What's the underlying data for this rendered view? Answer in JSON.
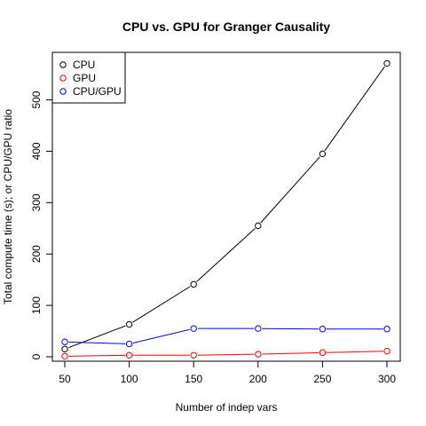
{
  "chart_data": {
    "type": "line",
    "title": "CPU vs. GPU for Granger Causality",
    "xlabel": "Number of indep vars",
    "ylabel": "Total compute time (s); or CPU/GPU ratio",
    "x": [
      50,
      100,
      150,
      200,
      250,
      300
    ],
    "xlim": [
      50,
      300
    ],
    "ylim": [
      0,
      570
    ],
    "x_ticks": [
      50,
      100,
      150,
      200,
      250,
      300
    ],
    "y_ticks": [
      0,
      100,
      200,
      300,
      400,
      500
    ],
    "grid": false,
    "legend_position": "top-left",
    "series": [
      {
        "name": "CPU",
        "color": "#000000",
        "values": [
          15,
          63,
          141,
          255,
          395,
          571
        ]
      },
      {
        "name": "GPU",
        "color": "#ff0000",
        "values": [
          1,
          3,
          3,
          5,
          8,
          11
        ]
      },
      {
        "name": "CPU/GPU",
        "color": "#0000ff",
        "values": [
          29,
          25,
          55,
          55,
          54,
          54
        ]
      }
    ],
    "legend": [
      "CPU",
      "GPU",
      "CPU/GPU"
    ]
  }
}
